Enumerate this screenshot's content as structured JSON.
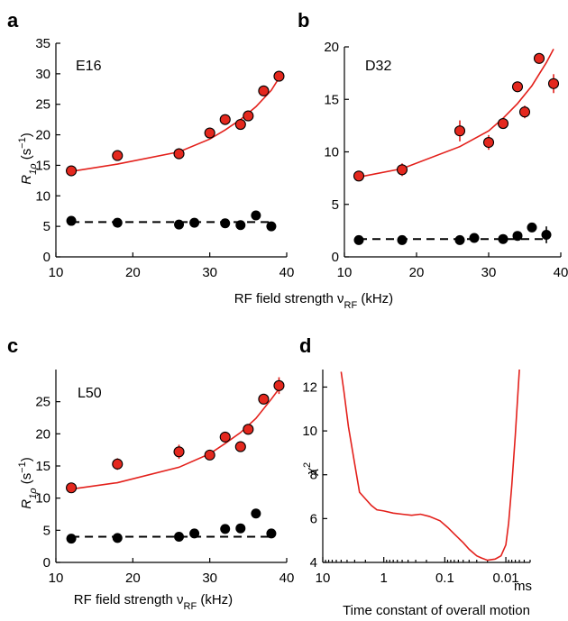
{
  "colors": {
    "red": "#e3201b",
    "marker_red": "#e4281e",
    "black": "#000000"
  },
  "shared_labels": {
    "top_xlabel": "RF field strength ν",
    "top_xlabel_sub": "RF",
    "top_xlabel_unit": " (kHz)"
  },
  "chart_data": [
    {
      "id": "a",
      "type": "scatter",
      "panel_letter": "a",
      "inset_label": "E16",
      "ylabel": "R",
      "ylabel_sub": "1ρ",
      "ylabel_unit": " (s",
      "ylabel_sup": "−1",
      "ylabel_close": ")",
      "xlim": [
        10,
        40
      ],
      "ylim": [
        0,
        35
      ],
      "xticks": [
        10,
        20,
        30,
        40
      ],
      "yticks": [
        0,
        5,
        10,
        15,
        20,
        25,
        30,
        35
      ],
      "series": [
        {
          "color": "red",
          "x": [
            12,
            18,
            26,
            30,
            32,
            34,
            35,
            37,
            39
          ],
          "y": [
            14.1,
            16.6,
            16.9,
            20.3,
            22.5,
            21.7,
            23.1,
            27.2,
            29.6
          ],
          "err": [
            0.5,
            0.5,
            0.9,
            0.5,
            0.5,
            0.7,
            0.5,
            0.5,
            0.6
          ]
        },
        {
          "color": "black",
          "x": [
            12,
            18,
            26,
            28,
            32,
            34,
            36,
            38
          ],
          "y": [
            5.9,
            5.6,
            5.3,
            5.6,
            5.5,
            5.2,
            6.8,
            5.0
          ],
          "err": [
            0.3,
            0.3,
            0.3,
            0.3,
            0.3,
            0.3,
            0.4,
            0.3
          ]
        }
      ],
      "fit_red": {
        "x": [
          12,
          18,
          26,
          30,
          32,
          34,
          36,
          38,
          39
        ],
        "y": [
          14.0,
          15.2,
          17.2,
          19.3,
          20.8,
          22.5,
          24.6,
          27.3,
          29.3
        ]
      },
      "fit_black": {
        "x": [
          12,
          38
        ],
        "y": [
          5.7,
          5.7
        ]
      }
    },
    {
      "id": "b",
      "type": "scatter",
      "panel_letter": "b",
      "inset_label": "D32",
      "xlim": [
        10,
        40
      ],
      "ylim": [
        0,
        20
      ],
      "xticks": [
        10,
        20,
        30,
        40
      ],
      "yticks": [
        0,
        5,
        10,
        15,
        20
      ],
      "series": [
        {
          "color": "red",
          "x": [
            12,
            18,
            26,
            30,
            32,
            34,
            35,
            37,
            39
          ],
          "y": [
            7.7,
            8.3,
            12.0,
            10.9,
            12.7,
            16.2,
            13.8,
            18.9,
            16.5
          ],
          "err": [
            0.4,
            0.6,
            1.0,
            0.7,
            0.4,
            0.5,
            0.6,
            0.5,
            0.9
          ]
        },
        {
          "color": "black",
          "x": [
            12,
            18,
            26,
            28,
            32,
            34,
            36,
            38
          ],
          "y": [
            1.6,
            1.6,
            1.6,
            1.8,
            1.7,
            2.0,
            2.8,
            2.1
          ],
          "err": [
            0.2,
            0.2,
            0.2,
            0.2,
            0.2,
            0.2,
            0.3,
            0.8
          ]
        }
      ],
      "fit_red": {
        "x": [
          12,
          18,
          26,
          30,
          32,
          34,
          36,
          38,
          39
        ],
        "y": [
          7.6,
          8.4,
          10.5,
          12.0,
          13.2,
          14.6,
          16.3,
          18.5,
          19.8
        ]
      },
      "fit_black": {
        "x": [
          12,
          38
        ],
        "y": [
          1.7,
          1.7
        ]
      }
    },
    {
      "id": "c",
      "type": "scatter",
      "panel_letter": "c",
      "inset_label": "L50",
      "ylabel": "R",
      "ylabel_sub": "1ρ",
      "ylabel_unit": " (s",
      "ylabel_sup": "−1",
      "ylabel_close": ")",
      "xlabel": "RF field strength ν",
      "xlabel_sub": "RF",
      "xlabel_unit": " (kHz)",
      "xlim": [
        10,
        40
      ],
      "ylim": [
        0,
        30
      ],
      "xticks": [
        10,
        20,
        30,
        40
      ],
      "yticks": [
        0,
        5,
        10,
        15,
        20,
        25
      ],
      "series": [
        {
          "color": "red",
          "x": [
            12,
            18,
            26,
            30,
            32,
            34,
            35,
            37,
            39
          ],
          "y": [
            11.6,
            15.3,
            17.2,
            16.7,
            19.5,
            18.0,
            20.7,
            25.4,
            27.5
          ],
          "err": [
            0.5,
            0.9,
            1.1,
            0.6,
            0.5,
            0.5,
            0.5,
            0.5,
            1.3
          ]
        },
        {
          "color": "black",
          "x": [
            12,
            18,
            26,
            28,
            32,
            34,
            36,
            38
          ],
          "y": [
            3.7,
            3.8,
            4.0,
            4.5,
            5.2,
            5.3,
            7.6,
            4.5
          ],
          "err": [
            0.3,
            0.3,
            0.3,
            0.3,
            0.3,
            0.3,
            0.4,
            0.3
          ]
        }
      ],
      "fit_red": {
        "x": [
          12,
          18,
          26,
          30,
          32,
          34,
          36,
          38,
          39
        ],
        "y": [
          11.4,
          12.4,
          14.8,
          16.9,
          18.5,
          20.2,
          22.4,
          25.4,
          27.0
        ]
      },
      "fit_black": {
        "x": [
          12,
          38
        ],
        "y": [
          4.0,
          4.0
        ]
      }
    },
    {
      "id": "d",
      "type": "line",
      "panel_letter": "d",
      "ylabel": "χ",
      "ylabel_sup": "2",
      "xlabel": "Time constant of overall motion",
      "x_unit_label": "ms",
      "x_scale": "log-reversed",
      "xlim": [
        10,
        0.004
      ],
      "ylim": [
        4,
        12.8
      ],
      "xticks": [
        10,
        1,
        0.1,
        0.01
      ],
      "xtick_labels": [
        "10",
        "1",
        "0.1",
        "0.01"
      ],
      "yticks": [
        4,
        6,
        8,
        10,
        12
      ],
      "series": [
        {
          "color": "red",
          "x": [
            5,
            4.5,
            3.8,
            3.0,
            2.5,
            2.0,
            1.6,
            1.3,
            1.0,
            0.7,
            0.5,
            0.35,
            0.25,
            0.18,
            0.12,
            0.09,
            0.07,
            0.05,
            0.04,
            0.03,
            0.025,
            0.02,
            0.015,
            0.012,
            0.01,
            0.009,
            0.008,
            0.007,
            0.006
          ],
          "y": [
            12.7,
            11.8,
            10.2,
            8.5,
            7.2,
            6.9,
            6.6,
            6.4,
            6.35,
            6.25,
            6.2,
            6.15,
            6.2,
            6.1,
            5.9,
            5.6,
            5.3,
            4.9,
            4.6,
            4.3,
            4.2,
            4.1,
            4.15,
            4.3,
            4.8,
            5.8,
            7.5,
            9.8,
            12.8
          ]
        }
      ]
    }
  ]
}
